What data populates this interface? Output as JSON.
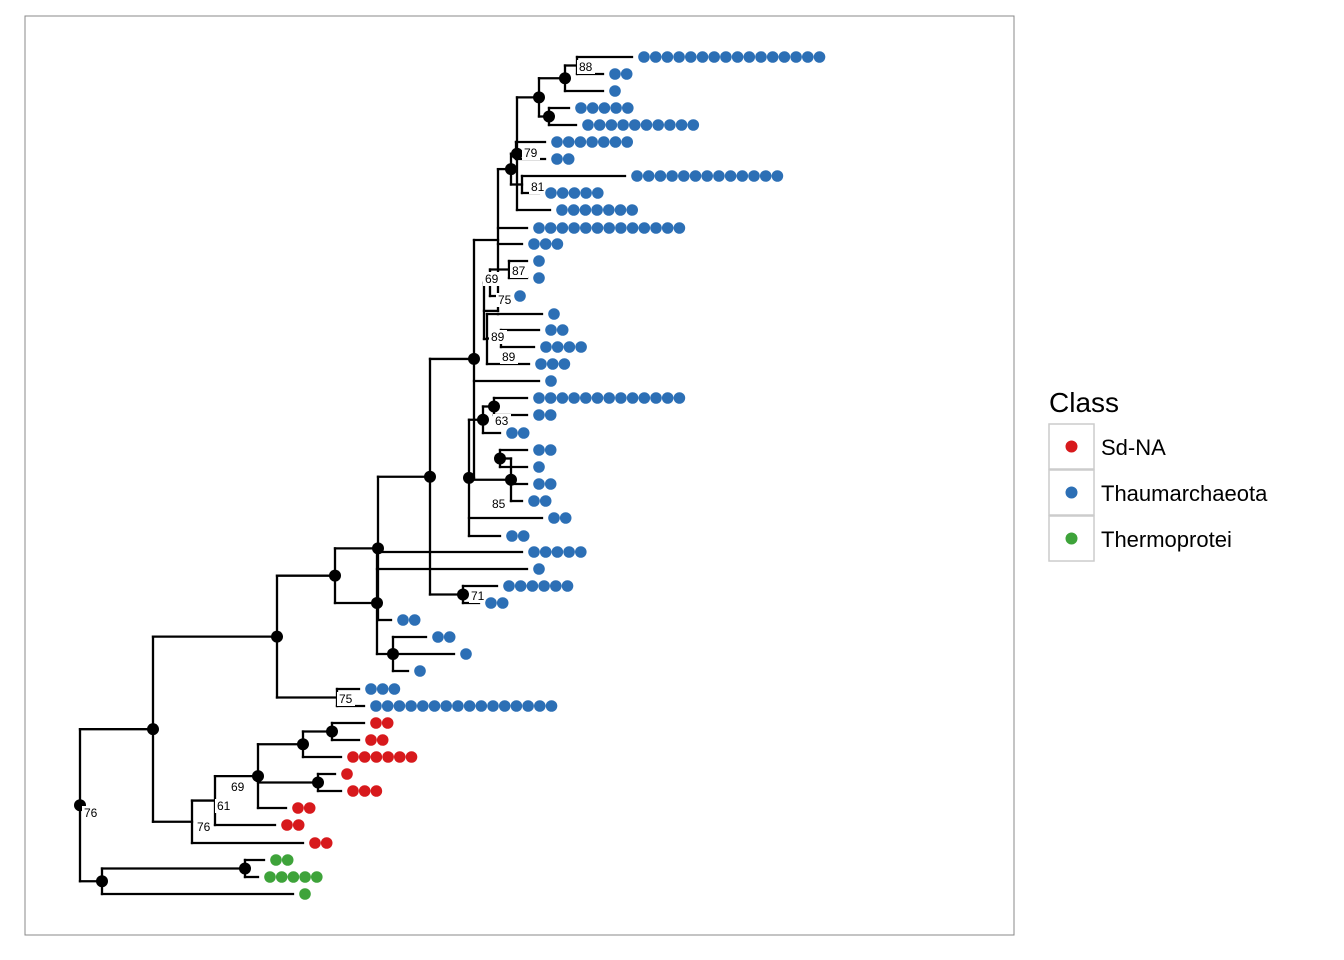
{
  "legend": {
    "title": "Class",
    "items": [
      {
        "label": "Sd-NA",
        "color": "#d7191c"
      },
      {
        "label": "Thaumarchaeota",
        "color": "#2c6fb5"
      },
      {
        "label": "Thermoprotei",
        "color": "#3ea33a"
      }
    ]
  },
  "colors": {
    "node": "#000000",
    "edge": "#000000",
    "panel_border": "#888888"
  },
  "tips": [
    {
      "class": "Thaumarchaeota",
      "count": 16
    },
    {
      "class": "Thaumarchaeota",
      "count": 2
    },
    {
      "class": "Thaumarchaeota",
      "count": 1
    },
    {
      "class": "Thaumarchaeota",
      "count": 5
    },
    {
      "class": "Thaumarchaeota",
      "count": 10
    },
    {
      "class": "Thaumarchaeota",
      "count": 7
    },
    {
      "class": "Thaumarchaeota",
      "count": 2
    },
    {
      "class": "Thaumarchaeota",
      "count": 13
    },
    {
      "class": "Thaumarchaeota",
      "count": 5
    },
    {
      "class": "Thaumarchaeota",
      "count": 7
    },
    {
      "class": "Thaumarchaeota",
      "count": 13
    },
    {
      "class": "Thaumarchaeota",
      "count": 3
    },
    {
      "class": "Thaumarchaeota",
      "count": 1
    },
    {
      "class": "Thaumarchaeota",
      "count": 1
    },
    {
      "class": "Thaumarchaeota",
      "count": 1
    },
    {
      "class": "Thaumarchaeota",
      "count": 1
    },
    {
      "class": "Thaumarchaeota",
      "count": 2
    },
    {
      "class": "Thaumarchaeota",
      "count": 4
    },
    {
      "class": "Thaumarchaeota",
      "count": 3
    },
    {
      "class": "Thaumarchaeota",
      "count": 1
    },
    {
      "class": "Thaumarchaeota",
      "count": 13
    },
    {
      "class": "Thaumarchaeota",
      "count": 2
    },
    {
      "class": "Thaumarchaeota",
      "count": 2
    },
    {
      "class": "Thaumarchaeota",
      "count": 2
    },
    {
      "class": "Thaumarchaeota",
      "count": 1
    },
    {
      "class": "Thaumarchaeota",
      "count": 2
    },
    {
      "class": "Thaumarchaeota",
      "count": 2
    },
    {
      "class": "Thaumarchaeota",
      "count": 2
    },
    {
      "class": "Thaumarchaeota",
      "count": 2
    },
    {
      "class": "Thaumarchaeota",
      "count": 5
    },
    {
      "class": "Thaumarchaeota",
      "count": 1
    },
    {
      "class": "Thaumarchaeota",
      "count": 6
    },
    {
      "class": "Thaumarchaeota",
      "count": 2
    },
    {
      "class": "Thaumarchaeota",
      "count": 2
    },
    {
      "class": "Thaumarchaeota",
      "count": 2
    },
    {
      "class": "Thaumarchaeota",
      "count": 1
    },
    {
      "class": "Thaumarchaeota",
      "count": 1
    },
    {
      "class": "Thaumarchaeota",
      "count": 3
    },
    {
      "class": "Thaumarchaeota",
      "count": 16
    },
    {
      "class": "Sd-NA",
      "count": 2
    },
    {
      "class": "Sd-NA",
      "count": 2
    },
    {
      "class": "Sd-NA",
      "count": 6
    },
    {
      "class": "Sd-NA",
      "count": 1
    },
    {
      "class": "Sd-NA",
      "count": 3
    },
    {
      "class": "Sd-NA",
      "count": 2
    },
    {
      "class": "Sd-NA",
      "count": 2
    },
    {
      "class": "Sd-NA",
      "count": 2
    },
    {
      "class": "Thermoprotei",
      "count": 2
    },
    {
      "class": "Thermoprotei",
      "count": 5
    },
    {
      "class": "Thermoprotei",
      "count": 1
    }
  ],
  "support_values": [
    "88",
    "79",
    "81",
    "87",
    "69",
    "75",
    "89",
    "89",
    "63",
    "85",
    "71",
    "75",
    "69",
    "61",
    "76",
    "76"
  ]
}
